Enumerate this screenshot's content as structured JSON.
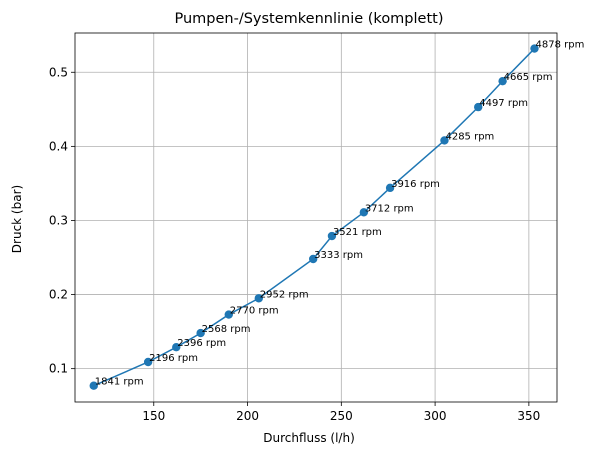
{
  "chart_data": {
    "type": "line",
    "title": "Pumpen-/Systemkennlinie (komplett)",
    "xlabel": "Durchfluss (l/h)",
    "ylabel": "Druck (bar)",
    "xlim": [
      108,
      365
    ],
    "ylim": [
      0.055,
      0.553
    ],
    "xticks": [
      150,
      200,
      250,
      300,
      350
    ],
    "yticks": [
      0.1,
      0.2,
      0.3,
      0.4,
      0.5
    ],
    "xtick_labels": [
      "150",
      "200",
      "250",
      "300",
      "350"
    ],
    "ytick_labels": [
      "0.1",
      "0.2",
      "0.3",
      "0.4",
      "0.5"
    ],
    "grid": true,
    "series_color": "#1f77b4",
    "marker": "circle",
    "points": [
      {
        "x": 118,
        "y": 0.077,
        "label": "1841 rpm"
      },
      {
        "x": 147,
        "y": 0.109,
        "label": "2196 rpm"
      },
      {
        "x": 162,
        "y": 0.129,
        "label": "2396 rpm"
      },
      {
        "x": 175,
        "y": 0.148,
        "label": "2568 rpm"
      },
      {
        "x": 190,
        "y": 0.173,
        "label": "2770 rpm"
      },
      {
        "x": 206,
        "y": 0.195,
        "label": "2952 rpm"
      },
      {
        "x": 235,
        "y": 0.248,
        "label": "3333 rpm"
      },
      {
        "x": 245,
        "y": 0.279,
        "label": "3521 rpm"
      },
      {
        "x": 262,
        "y": 0.311,
        "label": "3712 rpm"
      },
      {
        "x": 276,
        "y": 0.344,
        "label": "3916 rpm"
      },
      {
        "x": 305,
        "y": 0.408,
        "label": "4285 rpm"
      },
      {
        "x": 323,
        "y": 0.453,
        "label": "4497 rpm"
      },
      {
        "x": 336,
        "y": 0.488,
        "label": "4665 rpm"
      },
      {
        "x": 353,
        "y": 0.532,
        "label": "4878 rpm"
      }
    ]
  }
}
